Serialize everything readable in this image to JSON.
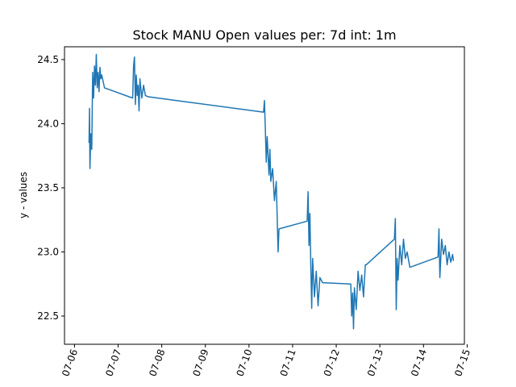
{
  "chart_data": {
    "type": "line",
    "title": "Stock MANU Open values per: 7d int: 1m",
    "xlabel": "",
    "ylabel": "y - values",
    "x_ticks": [
      "07-06",
      "07-07",
      "07-08",
      "07-09",
      "07-10",
      "07-11",
      "07-12",
      "07-13",
      "07-14",
      "07-15"
    ],
    "y_ticks": [
      "22.5",
      "23.0",
      "23.5",
      "24.0",
      "24.5"
    ],
    "xlim": [
      "07-05 18:30",
      "07-14 22:30"
    ],
    "ylim": [
      22.28,
      24.6
    ],
    "grid": false,
    "series": [
      {
        "color": "#1f77b4",
        "x": [
          "07-06 08:00",
          "07-06 08:15",
          "07-06 08:30",
          "07-06 09:00",
          "07-06 09:30",
          "07-06 10:00",
          "07-06 10:30",
          "07-06 11:00",
          "07-06 11:30",
          "07-06 12:00",
          "07-06 12:30",
          "07-06 13:00",
          "07-06 13:30",
          "07-06 14:00",
          "07-06 14:30",
          "07-06 15:00",
          "07-06 16:30",
          "07-07 08:00",
          "07-07 08:30",
          "07-07 09:00",
          "07-07 09:30",
          "07-07 10:00",
          "07-07 10:30",
          "07-07 11:00",
          "07-07 11:30",
          "07-07 12:00",
          "07-07 13:00",
          "07-07 14:00",
          "07-07 15:00",
          "07-07 16:30",
          "07-10 08:00",
          "07-10 08:30",
          "07-10 09:00",
          "07-10 09:30",
          "07-10 10:00",
          "07-10 10:30",
          "07-10 11:00",
          "07-10 11:30",
          "07-10 12:00",
          "07-10 13:00",
          "07-10 14:00",
          "07-10 15:00",
          "07-10 16:00",
          "07-10 16:30",
          "07-11 08:00",
          "07-11 08:30",
          "07-11 09:00",
          "07-11 09:30",
          "07-11 10:00",
          "07-11 10:30",
          "07-11 11:00",
          "07-11 12:00",
          "07-11 13:00",
          "07-11 14:00",
          "07-11 15:00",
          "07-11 16:30",
          "07-12 08:00",
          "07-12 08:30",
          "07-12 09:00",
          "07-12 09:30",
          "07-12 10:00",
          "07-12 11:00",
          "07-12 12:00",
          "07-12 13:00",
          "07-12 14:00",
          "07-12 15:00",
          "07-12 16:00",
          "07-12 16:30",
          "07-13 08:00",
          "07-13 08:30",
          "07-13 09:00",
          "07-13 09:30",
          "07-13 10:00",
          "07-13 11:00",
          "07-13 12:00",
          "07-13 13:00",
          "07-13 14:00",
          "07-13 15:00",
          "07-13 16:30",
          "07-14 08:00",
          "07-14 08:30",
          "07-14 09:00",
          "07-14 10:00",
          "07-14 11:00",
          "07-14 12:00",
          "07-14 13:00",
          "07-14 14:00",
          "07-14 15:00",
          "07-14 16:00",
          "07-14 16:30"
        ],
        "y": [
          23.85,
          24.12,
          23.65,
          23.92,
          23.8,
          24.4,
          24.2,
          24.45,
          24.3,
          24.54,
          24.28,
          24.4,
          24.25,
          24.44,
          24.35,
          24.38,
          24.28,
          24.2,
          24.45,
          24.52,
          24.15,
          24.38,
          24.22,
          24.3,
          24.1,
          24.35,
          24.2,
          24.3,
          24.22,
          24.21,
          24.09,
          24.18,
          23.95,
          23.7,
          23.9,
          23.75,
          23.6,
          23.8,
          23.55,
          23.65,
          23.4,
          23.55,
          23.0,
          23.18,
          23.24,
          23.47,
          23.05,
          23.3,
          22.9,
          22.56,
          22.95,
          22.65,
          22.85,
          22.58,
          22.8,
          22.76,
          22.75,
          22.5,
          22.68,
          22.4,
          22.72,
          22.55,
          22.85,
          22.7,
          22.82,
          22.65,
          22.9,
          22.9,
          23.1,
          23.26,
          22.55,
          22.95,
          22.78,
          23.05,
          22.9,
          23.1,
          22.95,
          23.0,
          22.88,
          22.96,
          23.18,
          22.8,
          23.1,
          22.98,
          23.05,
          22.9,
          23.0,
          22.92,
          22.98,
          22.93
        ]
      }
    ]
  }
}
